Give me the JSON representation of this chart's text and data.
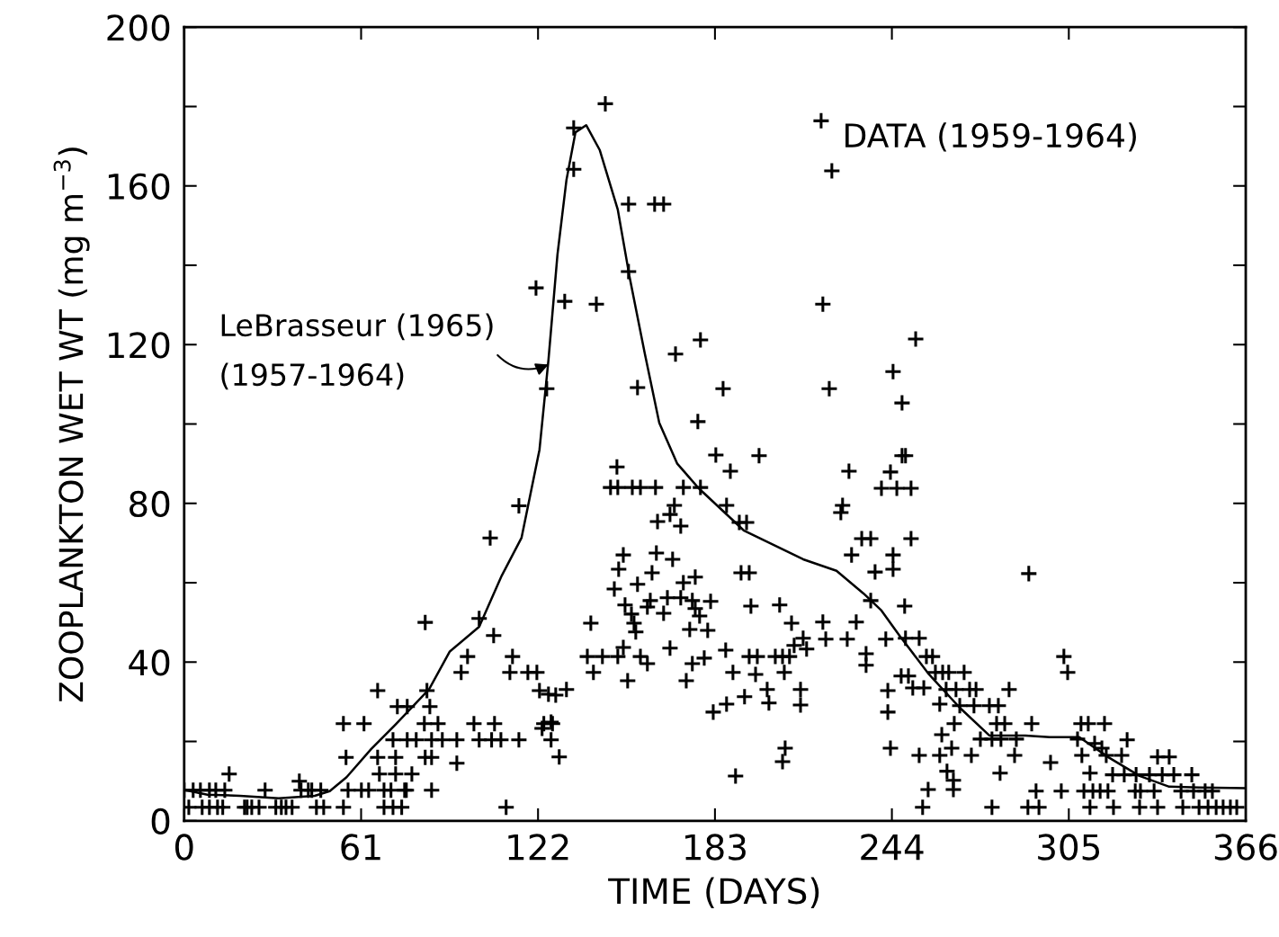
{
  "chart_data": {
    "type": "scatter",
    "xlabel": "TIME (DAYS)",
    "ylabel": "ZOOPLANKTON WET WT (mg m$^{−3}$)",
    "xlim": [
      0,
      366
    ],
    "xticks": [
      0,
      61,
      122,
      183,
      244,
      305,
      366
    ],
    "ylim": [
      0,
      200
    ],
    "yticks": [
      0,
      {
        "value": 20,
        "label": null
      },
      40,
      {
        "value": 60,
        "label": null
      },
      80,
      {
        "value": 100,
        "label": null
      },
      120,
      {
        "value": 140,
        "label": null
      },
      160,
      {
        "value": 180,
        "label": null
      },
      200
    ],
    "grid": false,
    "legend": false,
    "marker": "cross",
    "annotations": [
      {
        "text": "LeBrasseur (1965)\n(1957-1964)",
        "x": 125.6,
        "y": 115
      }
    ],
    "series": [
      {
        "name": "DATA (1959-1964)",
        "color": "#000000",
        "x": [
          1.6,
          6.2,
          8.7,
          11.5,
          13.3,
          20.8,
          21.7,
          23.3,
          25.8,
          31.6,
          33.5,
          35.1,
          37.2,
          45.6,
          48.1,
          54.9,
          68.9,
          72,
          75,
          111,
          0,
          3.1,
          5.6,
          8.7,
          10.9,
          14,
          27.9,
          40.3,
          42.8,
          44,
          47.1,
          56.5,
          61.1,
          63.6,
          68.9,
          71.3,
          76,
          76.6,
          85.3,
          15.5,
          39.7,
          67.3,
          72.9,
          78.5,
          55.8,
          66.7,
          72.9,
          83.1,
          85.3,
          94,
          72,
          76.9,
          80,
          85.3,
          89,
          94,
          101.7,
          106,
          109.2,
          115.4,
          126.5,
          54.9,
          62,
          82.8,
          87.5,
          99.9,
          107,
          124,
          127,
          73.5,
          76.9,
          84.7,
          66.7,
          83.7,
          95.5,
          112.3,
          118.5,
          121.6,
          97.7,
          113.2,
          106.7,
          101.7,
          83.1,
          105.5,
          115.4,
          145.2,
          134.3,
          134.3,
          153.2,
          162.2,
          165.3,
          153.2,
          121.3,
          131.2,
          142.1,
          178,
          169.4,
          125,
          156.3,
          185.8,
          222.4,
          177.1,
          219.6,
          223.3,
          220.2,
          252.2,
          244.4,
          247.5,
          183.3,
          198.2,
          188.3,
          229.2,
          149.2,
          147,
          149.5,
          154.5,
          157.3,
          162.5,
          172.1,
          178,
          169,
          187,
          167.5,
          227,
          226.4,
          163.2,
          171.2,
          191.4,
          193.9,
          233.6,
          236.7,
          230.1,
          238.2,
          151.4,
          162.8,
          168.4,
          149.8,
          161.3,
          192,
          194.8,
          176.2,
          156.3,
          172.1,
          148.3,
          160.7,
          166.6,
          171.2,
          175.2,
          181.5,
          152,
          159.7,
          165.3,
          176.2,
          195.4,
          205.3,
          236.7,
          154.2,
          177.7,
          155.1,
          155.7,
          140.2,
          209.4,
          220.2,
          231.7,
          174.3,
          180.5,
          213.4,
          221.2,
          228.6,
          167.5,
          186.7,
          214.6,
          210.3,
          139,
          144.2,
          149.5,
          157.3,
          194.8,
          197.6,
          203.8,
          206.3,
          208.7,
          151.4,
          159.7,
          179.3,
          235.1,
          235.1,
          141.1,
          152.9,
          173.1,
          175.2,
          189.2,
          197,
          206.9,
          122.5,
          125.6,
          128.1,
          131.8,
          201,
          212.5,
          193.2,
          201.6,
          212.5,
          187,
          182.4,
          126.5,
          123.4,
          129.3,
          207.2,
          206.3,
          190.1,
          247.5,
          248.7,
          243.5,
          240.4,
          245.7,
          250.6,
          250.6,
          244.4,
          244.4,
          248.4,
          291.2,
          241.9,
          248.7,
          253.4,
          255.9,
          258,
          247.2,
          249.7,
          259,
          261.5,
          263.6,
          268.9,
          251.2,
          255,
          262.7,
          266.1,
          270.8,
          273,
          284.4,
          242.6,
          242.6,
          260.5,
          267.4,
          272.3,
          277.6,
          280.7,
          265.5,
          280.1,
          282.9,
          292.2,
          309.2,
          311.7,
          317.3,
          261.2,
          274.5,
          278.5,
          281.6,
          286.9,
          308,
          325.1,
          313.9,
          316.4,
          243.5,
          264.6,
          253.4,
          260.5,
          271.4,
          286.3,
          309.5,
          317.9,
          323.2,
          298.7,
          263,
          281.3,
          312.3,
          335.6,
          339.6,
          320.1,
          324.1,
          328.2,
          332.8,
          337.2,
          341.2,
          347.4,
          265.2,
          265.2,
          256.5,
          293.7,
          302.4,
          310.2,
          313.3,
          315.8,
          318.5,
          327.9,
          329.7,
          334.4,
          343.7,
          348,
          352,
          354.5,
          254.6,
          278.5,
          290.9,
          294.7,
          312.3,
          320.4,
          329.4,
          335.6,
          344.3,
          349.9,
          353,
          355.8,
          358.2,
          360.7,
          362.9,
          303.3,
          304.6
        ],
        "values": [
          3.4,
          3.4,
          3.4,
          3.4,
          3.4,
          3.4,
          3.4,
          3.4,
          3.4,
          3.4,
          3.4,
          3.4,
          3.4,
          3.4,
          3.4,
          3.4,
          3.4,
          3.4,
          3.4,
          3.4,
          7.7,
          7.7,
          7.7,
          7.7,
          7.7,
          7.7,
          7.7,
          7.7,
          7.7,
          7.7,
          7.7,
          7.7,
          7.7,
          7.7,
          7.7,
          7.7,
          7.7,
          7.7,
          7.7,
          11.8,
          10,
          11.8,
          11.8,
          11.8,
          16,
          16,
          16,
          16,
          16,
          14.5,
          20.4,
          20.4,
          20.4,
          20.4,
          20.4,
          20.4,
          20.4,
          20.4,
          20.4,
          20.4,
          20.4,
          24.5,
          24.5,
          24.5,
          24.5,
          24.5,
          24.5,
          24.5,
          24.5,
          28.8,
          28.8,
          28.8,
          32.8,
          32.8,
          37.4,
          37.4,
          37.4,
          37.4,
          41.4,
          41.4,
          46.7,
          51,
          50,
          71.3,
          79.4,
          180.7,
          174.6,
          164.2,
          155.4,
          155.4,
          155.4,
          138.4,
          134.3,
          130.9,
          130.2,
          121.2,
          117.6,
          108.9,
          109.2,
          108.9,
          108.9,
          100.6,
          176.4,
          163.8,
          130.2,
          121.4,
          113.2,
          105.3,
          92.2,
          92,
          88.1,
          88.1,
          89.2,
          84,
          84,
          84,
          84,
          84,
          84,
          84,
          79.5,
          79.5,
          77.2,
          79.5,
          77.7,
          75.4,
          74.3,
          75.2,
          75.2,
          71.1,
          71.1,
          67,
          62.7,
          67,
          67.5,
          65.9,
          63.4,
          62.5,
          62.5,
          62.5,
          61.4,
          59.6,
          60,
          58.4,
          55.5,
          56.2,
          56.2,
          55.5,
          55.3,
          54.4,
          53.9,
          52.3,
          53.5,
          54.1,
          54.4,
          55.5,
          52.1,
          51.6,
          49.8,
          47.6,
          49.8,
          49.8,
          50.1,
          50.1,
          48.2,
          48,
          46,
          45.8,
          45.8,
          43.5,
          43,
          43.3,
          44.2,
          41.4,
          41.4,
          41.4,
          41.4,
          41.4,
          41.4,
          41.4,
          41.4,
          41.4,
          43.7,
          39.6,
          41,
          42.1,
          39.2,
          37.4,
          35.3,
          35.3,
          39.6,
          37.4,
          36.9,
          37.4,
          32.8,
          31.9,
          31.7,
          33.1,
          33.1,
          33.1,
          31.3,
          29.7,
          29.2,
          29.4,
          27.4,
          24.9,
          23.3,
          16.1,
          18.3,
          14.9,
          11.3,
          92,
          92,
          87.9,
          83.8,
          83.8,
          83.8,
          71.1,
          67,
          63.4,
          54.1,
          62.3,
          45.8,
          46,
          46,
          41.4,
          41.4,
          36.5,
          36.5,
          37.4,
          37.4,
          37.4,
          37.4,
          33.5,
          33.5,
          33.1,
          33.1,
          33.1,
          33.1,
          33.1,
          32.8,
          27.4,
          29.4,
          29,
          29,
          29,
          29,
          24.5,
          24.5,
          24.5,
          24.5,
          24.5,
          24.5,
          24.5,
          21.7,
          20.6,
          20.6,
          20.6,
          20.6,
          20.6,
          20.4,
          19.5,
          18.3,
          18.3,
          18.3,
          16.5,
          16.5,
          16.5,
          16.5,
          16.5,
          16.5,
          16.5,
          14.7,
          12.5,
          12,
          12,
          16.1,
          16.1,
          11.6,
          11.6,
          11.6,
          11.6,
          11.6,
          11.6,
          11.6,
          10.2,
          7.9,
          7.9,
          7.5,
          7.5,
          7.5,
          7.5,
          7.5,
          7.5,
          7.5,
          7.5,
          7.5,
          7.5,
          7.5,
          7.5,
          7.5,
          3.4,
          3.4,
          3.4,
          3.4,
          3.4,
          3.4,
          3.4,
          3.4,
          3.4,
          3.4,
          3.4,
          3.4,
          3.4,
          3.4,
          3.4,
          41.4,
          37.4
        ]
      },
      {
        "type": "line",
        "color": "#000000",
        "line_style": "solid",
        "marker": "none",
        "x": [
          0,
          8,
          19.2,
          32.6,
          45,
          50.2,
          56,
          64.5,
          72.9,
          84.4,
          91.5,
          101.7,
          109.5,
          116.3,
          122.5,
          125.6,
          128.7,
          131.8,
          134.9,
          138.6,
          143.3,
          149.5,
          153.5,
          158.8,
          163.8,
          170,
          177.4,
          192.9,
          213.4,
          224.9,
          234.2,
          240.4,
          246.6,
          256.8,
          267.4,
          277.6,
          290,
          298.4,
          308.6,
          318.9,
          329.4,
          339.6,
          350,
          366
        ],
        "values": [
          7.8,
          6.6,
          6.3,
          5.7,
          6.3,
          7.5,
          11,
          18.1,
          24.3,
          33.1,
          42.6,
          48.9,
          61.8,
          71.3,
          93.5,
          116.2,
          142.7,
          161.5,
          173.5,
          175.3,
          169,
          154,
          137.3,
          117.8,
          100.3,
          90,
          83.8,
          73.2,
          65.9,
          63,
          57.3,
          53,
          46.7,
          36.9,
          28.5,
          21.5,
          21.5,
          21.1,
          21.1,
          15.9,
          11.3,
          8.6,
          8.4,
          8.2
        ]
      }
    ]
  }
}
